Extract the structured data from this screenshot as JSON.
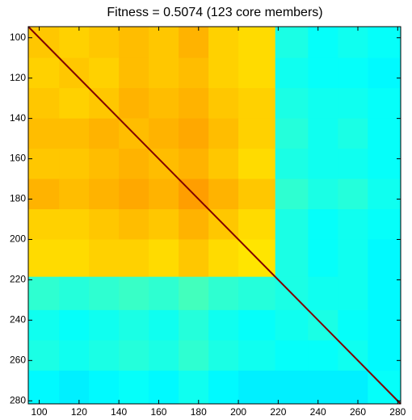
{
  "chart_data": {
    "type": "heatmap",
    "title": "Fitness = 0.5074 (123 core members)",
    "colormap": "jet",
    "clim": [
      0,
      1
    ],
    "xbins": [
      94.5,
      110,
      125,
      140,
      155,
      170,
      185,
      200,
      218.5,
      235,
      250,
      265,
      281.5
    ],
    "ybins": [
      94.5,
      110,
      125,
      140,
      155,
      170,
      185,
      200,
      218.5,
      235,
      250,
      265,
      281.5
    ],
    "values": [
      [
        0.68,
        0.67,
        0.68,
        0.69,
        0.68,
        0.7,
        0.67,
        0.66,
        0.4,
        0.38,
        0.39,
        0.38
      ],
      [
        0.67,
        0.68,
        0.67,
        0.69,
        0.68,
        0.69,
        0.67,
        0.66,
        0.39,
        0.38,
        0.38,
        0.37
      ],
      [
        0.68,
        0.67,
        0.68,
        0.7,
        0.69,
        0.7,
        0.68,
        0.67,
        0.4,
        0.39,
        0.39,
        0.38
      ],
      [
        0.69,
        0.69,
        0.7,
        0.69,
        0.7,
        0.71,
        0.69,
        0.67,
        0.41,
        0.39,
        0.4,
        0.38
      ],
      [
        0.68,
        0.68,
        0.69,
        0.7,
        0.69,
        0.7,
        0.68,
        0.66,
        0.4,
        0.39,
        0.39,
        0.38
      ],
      [
        0.7,
        0.69,
        0.7,
        0.71,
        0.7,
        0.72,
        0.7,
        0.68,
        0.42,
        0.4,
        0.41,
        0.39
      ],
      [
        0.67,
        0.67,
        0.68,
        0.69,
        0.68,
        0.7,
        0.68,
        0.66,
        0.4,
        0.38,
        0.39,
        0.38
      ],
      [
        0.66,
        0.66,
        0.67,
        0.67,
        0.66,
        0.68,
        0.66,
        0.65,
        0.4,
        0.38,
        0.39,
        0.37
      ],
      [
        0.42,
        0.41,
        0.42,
        0.43,
        0.42,
        0.44,
        0.42,
        0.41,
        0.4,
        0.39,
        0.39,
        0.37
      ],
      [
        0.39,
        0.38,
        0.39,
        0.4,
        0.39,
        0.41,
        0.39,
        0.38,
        0.39,
        0.4,
        0.38,
        0.37
      ],
      [
        0.4,
        0.39,
        0.4,
        0.41,
        0.4,
        0.42,
        0.4,
        0.39,
        0.38,
        0.38,
        0.39,
        0.37
      ],
      [
        0.37,
        0.36,
        0.37,
        0.38,
        0.37,
        0.39,
        0.37,
        0.36,
        0.36,
        0.36,
        0.36,
        0.38
      ]
    ],
    "diagonal_value": 1,
    "xlim": [
      94.5,
      281.5
    ],
    "ylim": [
      94.5,
      281.5
    ],
    "xticks": [
      100,
      120,
      140,
      160,
      180,
      200,
      220,
      240,
      260,
      280
    ],
    "yticks": [
      100,
      120,
      140,
      160,
      180,
      200,
      220,
      240,
      260,
      280
    ]
  }
}
